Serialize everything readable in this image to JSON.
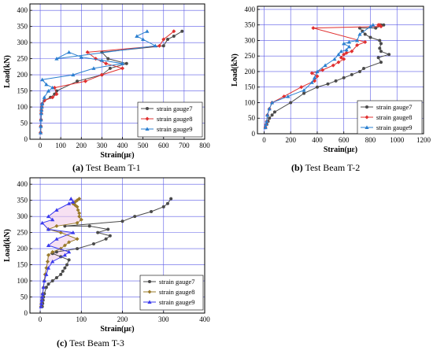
{
  "colors": {
    "grid": "#5b5be6",
    "axis": "#000000",
    "gauge7": "#4a4a4a",
    "gauge8": "#e03030",
    "gauge9": "#2a7fd0",
    "gauge8_t3": "#9a7a2a",
    "gauge9_t3": "#3a3aee",
    "fill_t3": "#f0c8e8"
  },
  "chart_data": [
    {
      "type": "line",
      "caption_letter": "(a)",
      "caption_text": " Test Beam T-1",
      "xlabel": "Strain(με)",
      "ylabel": "Load(kN)",
      "xlim": [
        -50,
        800
      ],
      "ylim": [
        0,
        420
      ],
      "xticks": [
        0,
        100,
        200,
        300,
        400,
        500,
        600,
        700,
        800
      ],
      "yticks": [
        0,
        50,
        100,
        150,
        200,
        250,
        300,
        350,
        400
      ],
      "legend_position": "bottom-right",
      "series": [
        {
          "name": "strain gauge7",
          "marker": "circle",
          "x": [
            2,
            3,
            4,
            5,
            6,
            8,
            10,
            20,
            50,
            70,
            80,
            180,
            300,
            340,
            420,
            330,
            300,
            600,
            620,
            650,
            690
          ],
          "y": [
            20,
            40,
            60,
            80,
            90,
            100,
            110,
            120,
            130,
            140,
            150,
            180,
            200,
            220,
            235,
            250,
            270,
            290,
            310,
            320,
            335
          ]
        },
        {
          "name": "strain gauge8",
          "marker": "diamond",
          "x": [
            2,
            3,
            4,
            5,
            6,
            8,
            10,
            20,
            60,
            80,
            70,
            220,
            300,
            400,
            320,
            270,
            230,
            580,
            600,
            650
          ],
          "y": [
            20,
            40,
            60,
            80,
            90,
            100,
            110,
            120,
            130,
            140,
            160,
            180,
            200,
            220,
            235,
            250,
            270,
            290,
            310,
            335
          ]
        },
        {
          "name": "strain gauge9",
          "marker": "triangle",
          "x": [
            2,
            3,
            4,
            5,
            6,
            8,
            10,
            20,
            40,
            60,
            30,
            10,
            160,
            260,
            400,
            300,
            200,
            140,
            80,
            560,
            500,
            470,
            520
          ],
          "y": [
            20,
            40,
            60,
            80,
            90,
            100,
            110,
            130,
            150,
            160,
            170,
            185,
            200,
            220,
            235,
            245,
            255,
            270,
            250,
            290,
            310,
            320,
            335
          ]
        }
      ]
    },
    {
      "type": "line",
      "caption_letter": "(b)",
      "caption_text": " Test Beam T-2",
      "xlabel": "Strain(με)",
      "ylabel": "Load(kN)",
      "xlim": [
        -50,
        1200
      ],
      "ylim": [
        0,
        410
      ],
      "xticks": [
        0,
        200,
        400,
        600,
        800,
        1000,
        1200
      ],
      "yticks": [
        0,
        50,
        100,
        150,
        200,
        250,
        300,
        350,
        400
      ],
      "legend_position": "bottom-right",
      "series": [
        {
          "name": "strain gauge7",
          "marker": "circle",
          "x": [
            10,
            20,
            30,
            40,
            60,
            80,
            200,
            300,
            400,
            480,
            540,
            600,
            660,
            720,
            750,
            880,
            860,
            940,
            880,
            870,
            880,
            870,
            800,
            760,
            740,
            720,
            840,
            900,
            880
          ],
          "y": [
            20,
            30,
            40,
            50,
            60,
            70,
            100,
            130,
            150,
            160,
            170,
            180,
            190,
            200,
            210,
            230,
            245,
            255,
            265,
            275,
            290,
            300,
            310,
            320,
            330,
            340,
            340,
            350,
            350
          ]
        },
        {
          "name": "strain gauge8",
          "marker": "diamond",
          "x": [
            10,
            15,
            20,
            25,
            40,
            60,
            150,
            280,
            380,
            400,
            360,
            440,
            520,
            560,
            600,
            580,
            600,
            620,
            660,
            700,
            760,
            370,
            880,
            870,
            860
          ],
          "y": [
            20,
            30,
            40,
            60,
            80,
            100,
            120,
            150,
            170,
            185,
            195,
            205,
            220,
            230,
            240,
            245,
            255,
            260,
            265,
            285,
            295,
            340,
            345,
            350,
            350
          ]
        },
        {
          "name": "strain gauge9",
          "marker": "triangle",
          "x": [
            10,
            15,
            20,
            25,
            40,
            60,
            180,
            300,
            360,
            380,
            400,
            460,
            530,
            560,
            580,
            620,
            640,
            600,
            640,
            700,
            720,
            800,
            820
          ],
          "y": [
            20,
            30,
            40,
            60,
            80,
            100,
            120,
            140,
            165,
            180,
            200,
            220,
            240,
            255,
            265,
            270,
            280,
            290,
            295,
            300,
            320,
            345,
            350
          ]
        }
      ]
    },
    {
      "type": "line",
      "caption_letter": "(c)",
      "caption_text": " Test Beam T-3",
      "xlabel": "Strain(με)",
      "ylabel": "Load(kN)",
      "xlim": [
        -25,
        400
      ],
      "ylim": [
        0,
        420
      ],
      "xticks": [
        0,
        100,
        200,
        300,
        400
      ],
      "yticks": [
        0,
        50,
        100,
        150,
        200,
        250,
        300,
        350,
        400
      ],
      "legend_position": "bottom-right",
      "series": [
        {
          "name": "strain gauge7",
          "marker": "circle",
          "x": [
            5,
            6,
            7,
            8,
            10,
            15,
            20,
            30,
            40,
            50,
            55,
            60,
            65,
            70,
            50,
            30,
            40,
            90,
            130,
            160,
            170,
            140,
            165,
            120,
            60,
            200,
            230,
            270,
            300,
            310,
            318
          ],
          "y": [
            20,
            30,
            40,
            50,
            60,
            80,
            90,
            100,
            110,
            120,
            130,
            140,
            150,
            165,
            175,
            185,
            190,
            200,
            215,
            230,
            240,
            250,
            260,
            270,
            270,
            285,
            300,
            315,
            330,
            340,
            355
          ]
        },
        {
          "name": "strain gauge8",
          "marker": "diamond",
          "x": [
            2,
            3,
            4,
            5,
            6,
            8,
            10,
            12,
            15,
            18,
            20,
            30,
            50,
            60,
            70,
            90,
            50,
            20,
            40,
            90,
            100,
            95,
            95,
            92,
            90,
            85,
            80,
            85,
            90,
            95
          ],
          "y": [
            20,
            30,
            40,
            50,
            60,
            80,
            100,
            120,
            140,
            160,
            180,
            190,
            200,
            210,
            220,
            230,
            250,
            260,
            270,
            280,
            290,
            300,
            310,
            320,
            330,
            335,
            340,
            345,
            350,
            355
          ]
        },
        {
          "name": "strain gauge9",
          "marker": "triangle",
          "x": [
            2,
            3,
            4,
            5,
            6,
            8,
            10,
            15,
            20,
            30,
            60,
            70,
            20,
            40,
            80,
            20,
            5,
            30,
            20,
            40,
            70,
            80,
            75
          ],
          "y": [
            20,
            30,
            40,
            50,
            60,
            80,
            100,
            120,
            140,
            160,
            180,
            190,
            210,
            230,
            250,
            260,
            280,
            290,
            300,
            320,
            340,
            345,
            355
          ]
        }
      ]
    }
  ]
}
